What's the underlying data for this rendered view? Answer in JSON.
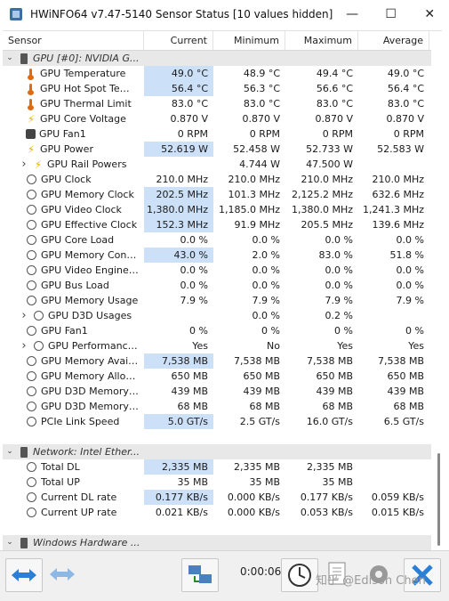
{
  "window": {
    "title": "HWiNFO64 v7.47-5140 Sensor Status [10 values hidden]",
    "minimize": "—",
    "maximize": "☐",
    "close": "✕"
  },
  "columns": [
    "Sensor",
    "Current",
    "Minimum",
    "Maximum",
    "Average"
  ],
  "groups": {
    "gpu": "GPU [#0]: NVIDIA G...",
    "network": "Network: Intel Ether...",
    "windows": "Windows Hardware ..."
  },
  "gpu_rows": [
    {
      "label": "GPU Temperature",
      "icon": "thermometer-icon",
      "current": "49.0 °C",
      "min": "48.9 °C",
      "max": "49.4 °C",
      "avg": "49.0 °C",
      "hl": true
    },
    {
      "label": "GPU Hot Spot Tempe...",
      "icon": "thermometer-icon",
      "current": "56.4 °C",
      "min": "56.3 °C",
      "max": "56.6 °C",
      "avg": "56.4 °C",
      "hl": true
    },
    {
      "label": "GPU Thermal Limit",
      "icon": "thermometer-icon",
      "current": "83.0 °C",
      "min": "83.0 °C",
      "max": "83.0 °C",
      "avg": "83.0 °C",
      "hl": false
    },
    {
      "label": "GPU Core Voltage",
      "icon": "lightning-icon",
      "current": "0.870 V",
      "min": "0.870 V",
      "max": "0.870 V",
      "avg": "0.870 V",
      "hl": false
    },
    {
      "label": "GPU Fan1",
      "icon": "fan-icon",
      "current": "0 RPM",
      "min": "0 RPM",
      "max": "0 RPM",
      "avg": "0 RPM",
      "hl": false
    },
    {
      "label": "GPU Power",
      "icon": "lightning-icon",
      "current": "52.619 W",
      "min": "52.458 W",
      "max": "52.733 W",
      "avg": "52.583 W",
      "hl": true
    },
    {
      "label": "GPU Rail Powers",
      "icon": "lightning-icon",
      "current": "",
      "min": "4.744 W",
      "max": "47.500 W",
      "avg": "",
      "hl": false,
      "expand": true
    },
    {
      "label": "GPU Clock",
      "icon": "clock-icon",
      "current": "210.0 MHz",
      "min": "210.0 MHz",
      "max": "210.0 MHz",
      "avg": "210.0 MHz",
      "hl": false
    },
    {
      "label": "GPU Memory Clock",
      "icon": "clock-icon",
      "current": "202.5 MHz",
      "min": "101.3 MHz",
      "max": "2,125.2 MHz",
      "avg": "632.6 MHz",
      "hl": true
    },
    {
      "label": "GPU Video Clock",
      "icon": "clock-icon",
      "current": "1,380.0 MHz",
      "min": "1,185.0 MHz",
      "max": "1,380.0 MHz",
      "avg": "1,241.3 MHz",
      "hl": true
    },
    {
      "label": "GPU Effective Clock",
      "icon": "clock-icon",
      "current": "152.3 MHz",
      "min": "91.9 MHz",
      "max": "205.5 MHz",
      "avg": "139.6 MHz",
      "hl": true
    },
    {
      "label": "GPU Core Load",
      "icon": "clock-icon",
      "current": "0.0 %",
      "min": "0.0 %",
      "max": "0.0 %",
      "avg": "0.0 %",
      "hl": false
    },
    {
      "label": "GPU Memory Controll...",
      "icon": "clock-icon",
      "current": "43.0 %",
      "min": "2.0 %",
      "max": "83.0 %",
      "avg": "51.8 %",
      "hl": true
    },
    {
      "label": "GPU Video Engine Load",
      "icon": "clock-icon",
      "current": "0.0 %",
      "min": "0.0 %",
      "max": "0.0 %",
      "avg": "0.0 %",
      "hl": false
    },
    {
      "label": "GPU Bus Load",
      "icon": "clock-icon",
      "current": "0.0 %",
      "min": "0.0 %",
      "max": "0.0 %",
      "avg": "0.0 %",
      "hl": false
    },
    {
      "label": "GPU Memory Usage",
      "icon": "clock-icon",
      "current": "7.9 %",
      "min": "7.9 %",
      "max": "7.9 %",
      "avg": "7.9 %",
      "hl": false
    },
    {
      "label": "GPU D3D Usages",
      "icon": "clock-icon",
      "current": "",
      "min": "0.0 %",
      "max": "0.2 %",
      "avg": "",
      "hl": false,
      "expand": true
    },
    {
      "label": "GPU Fan1",
      "icon": "clock-icon",
      "current": "0 %",
      "min": "0 %",
      "max": "0 %",
      "avg": "0 %",
      "hl": false
    },
    {
      "label": "GPU Performance...",
      "icon": "clock-icon",
      "current": "Yes",
      "min": "No",
      "max": "Yes",
      "avg": "Yes",
      "hl": false,
      "expand": true
    },
    {
      "label": "GPU Memory Available",
      "icon": "clock-icon",
      "current": "7,538 MB",
      "min": "7,538 MB",
      "max": "7,538 MB",
      "avg": "7,538 MB",
      "hl": true
    },
    {
      "label": "GPU Memory Allocated",
      "icon": "clock-icon",
      "current": "650 MB",
      "min": "650 MB",
      "max": "650 MB",
      "avg": "650 MB",
      "hl": false
    },
    {
      "label": "GPU D3D Memory De...",
      "icon": "clock-icon",
      "current": "439 MB",
      "min": "439 MB",
      "max": "439 MB",
      "avg": "439 MB",
      "hl": false
    },
    {
      "label": "GPU D3D Memory Dy...",
      "icon": "clock-icon",
      "current": "68 MB",
      "min": "68 MB",
      "max": "68 MB",
      "avg": "68 MB",
      "hl": false
    },
    {
      "label": "PCIe Link Speed",
      "icon": "clock-icon",
      "current": "5.0 GT/s",
      "min": "2.5 GT/s",
      "max": "16.0 GT/s",
      "avg": "6.5 GT/s",
      "hl": true
    }
  ],
  "net_rows": [
    {
      "label": "Total DL",
      "current": "2,335 MB",
      "min": "2,335 MB",
      "max": "2,335 MB",
      "avg": "",
      "hl": true
    },
    {
      "label": "Total UP",
      "current": "35 MB",
      "min": "35 MB",
      "max": "35 MB",
      "avg": "",
      "hl": false
    },
    {
      "label": "Current DL rate",
      "current": "0.177 KB/s",
      "min": "0.000 KB/s",
      "max": "0.177 KB/s",
      "avg": "0.059 KB/s",
      "hl": true
    },
    {
      "label": "Current UP rate",
      "current": "0.021 KB/s",
      "min": "0.000 KB/s",
      "max": "0.053 KB/s",
      "avg": "0.015 KB/s",
      "hl": false
    }
  ],
  "toolbar": {
    "timer": "0:00:06",
    "watermark": "知乎 @Edison Chen"
  }
}
